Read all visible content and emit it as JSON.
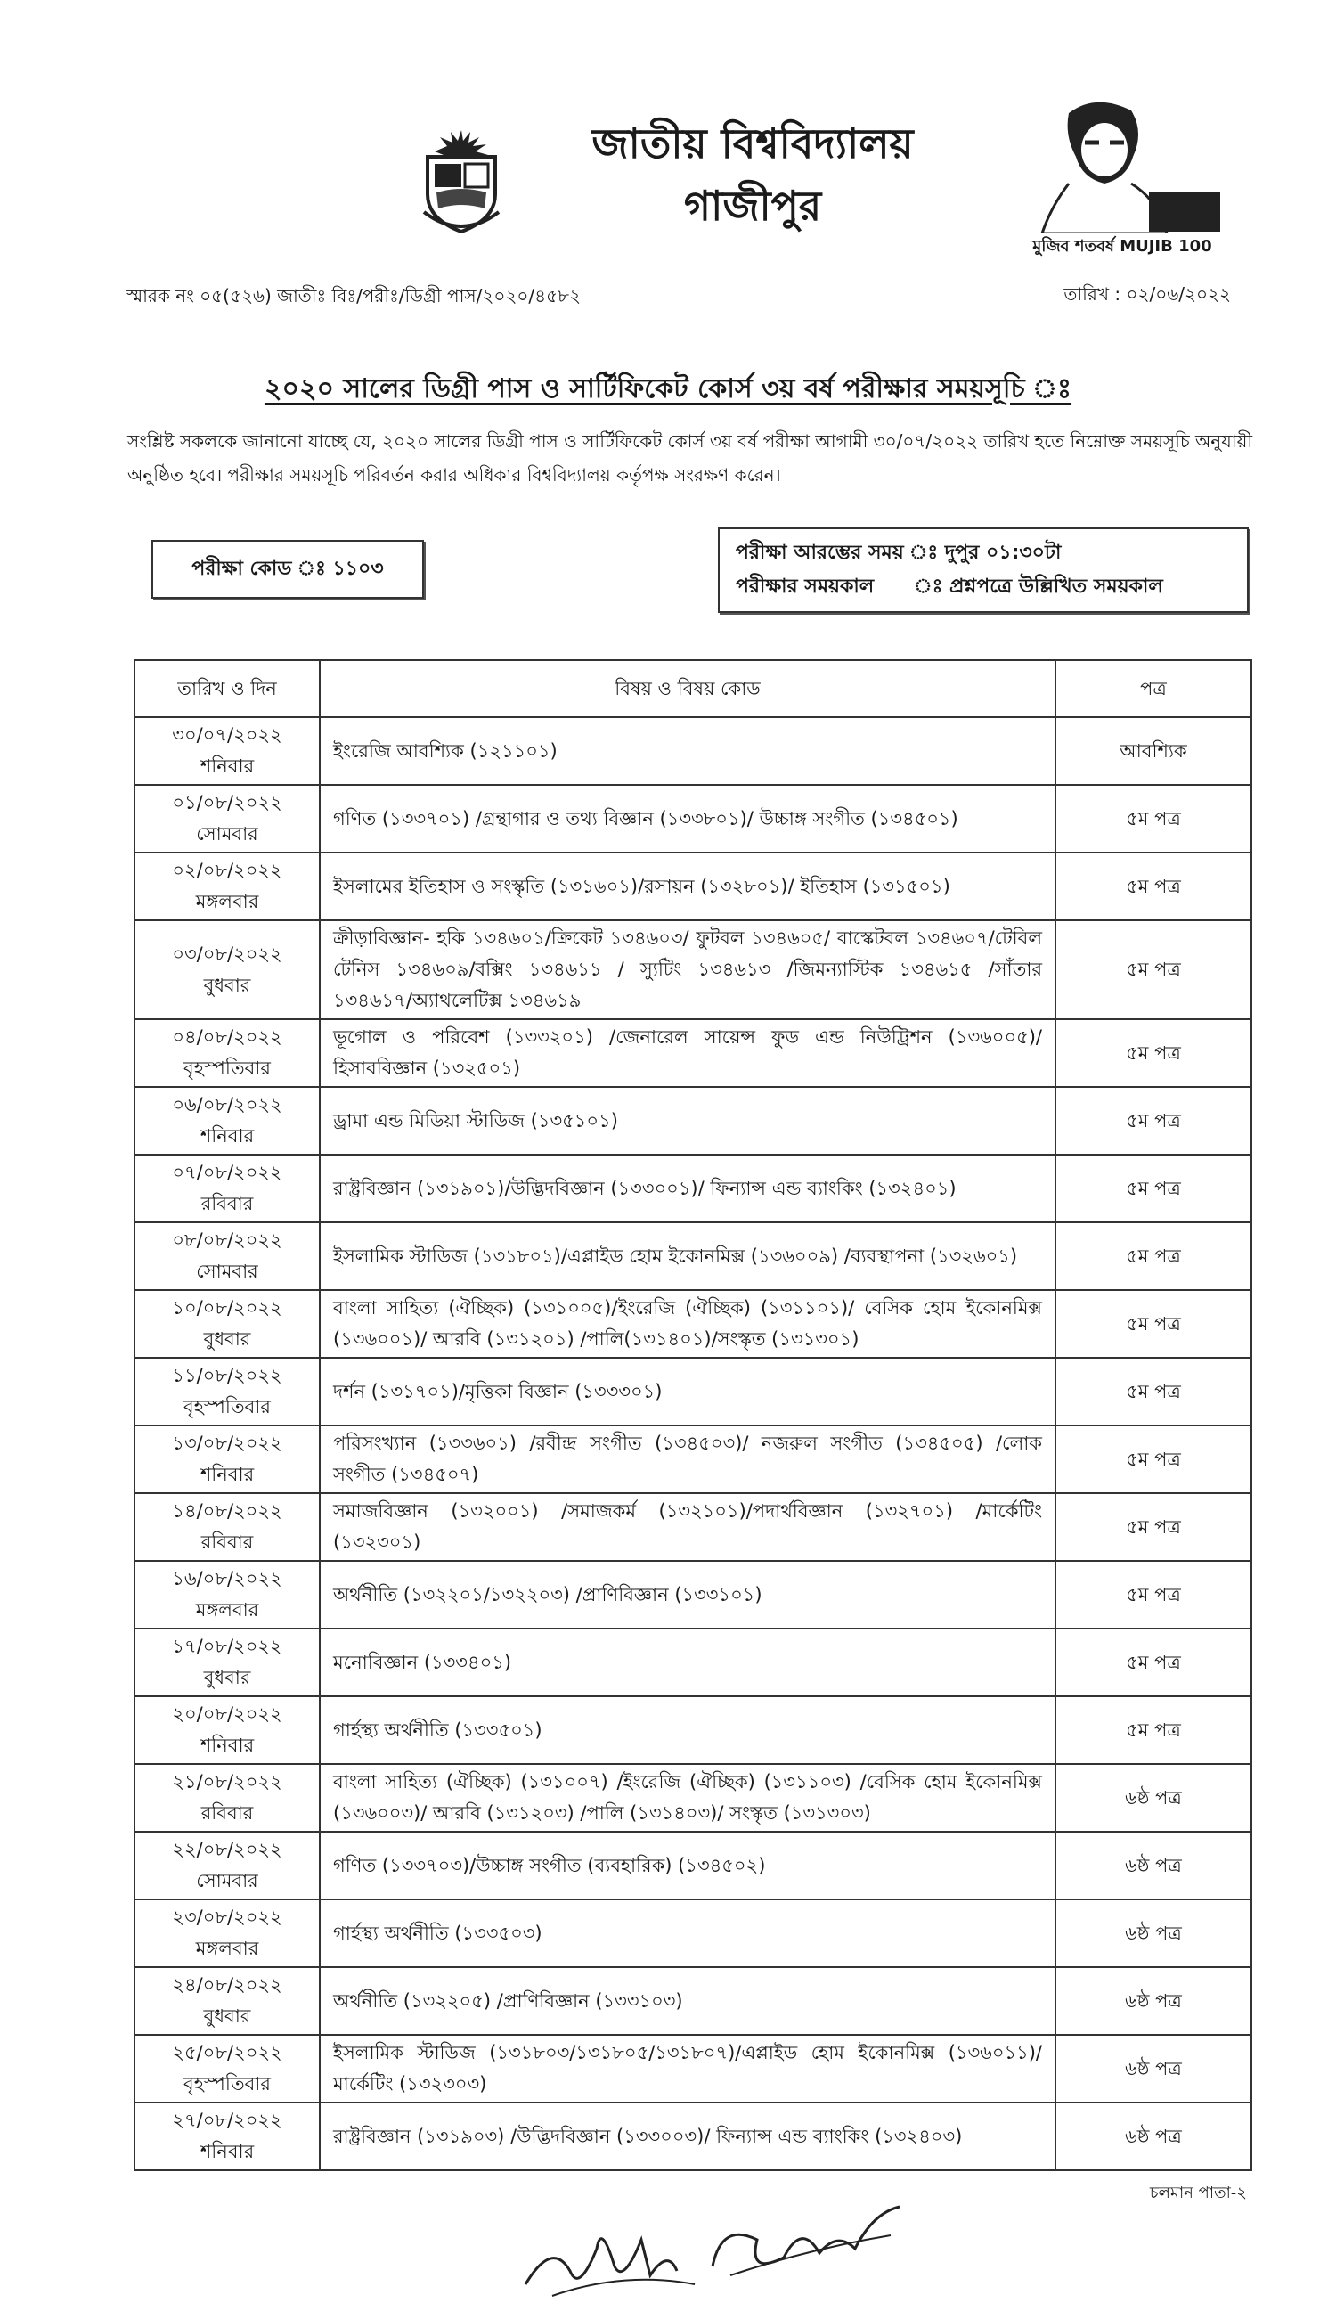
{
  "header": {
    "university_name": "জাতীয় বিশ্ববিদ্যালয়",
    "location": "গাজীপুর",
    "logo_text": "জাতীয় বিশ্ববিদ্যালয়",
    "mujib_logo_text": "মুজিব শতবর্ষ MUJIB 100"
  },
  "memo": "স্মারক নং ০৫(৫২৬) জাতীঃ বিঃ/পরীঃ/ডিগ্রী পাস/২০২০/৪৫৮২",
  "date": "তারিখ : ০২/০৬/২০২২",
  "title": "২০২০ সালের ডিগ্রী পাস ও সার্টিফিকেট কোর্স ৩য় বর্ষ পরীক্ষার সময়সূচি ঃ",
  "intro": "সংশ্লিষ্ট সকলকে জানানো যাচ্ছে যে, ২০২০ সালের ডিগ্রী পাস ও সার্টিফিকেট কোর্স ৩য় বর্ষ পরীক্ষা আগামী ৩০/০৭/২০২২ তারিখ হতে নিম্নোক্ত সময়সূচি অনুযায়ী অনুষ্ঠিত হবে। পরীক্ষার সময়সূচি পরিবর্তন করার অধিকার বিশ্ববিদ্যালয় কর্তৃপক্ষ সংরক্ষণ করেন।",
  "exam_code": "পরীক্ষা কোড ঃ ১১০৩",
  "exam_info": {
    "start_label": "পরীক্ষা আরম্ভের সময়",
    "start_value": "ঃ দুপুর ০১:৩০টা",
    "duration_label": "পরীক্ষার সময়কাল",
    "duration_value": "ঃ প্রশ্নপত্রে উল্লিখিত সময়কাল"
  },
  "table": {
    "headers": [
      "তারিখ ও দিন",
      "বিষয় ও বিষয় কোড",
      "পত্র"
    ],
    "rows": [
      {
        "date": "৩০/০৭/২০২২",
        "day": "শনিবার",
        "subject": "ইংরেজি আবশ্যিক (১২১১০১)",
        "paper": "আবশ্যিক"
      },
      {
        "date": "০১/০৮/২০২২",
        "day": "সোমবার",
        "subject": "গণিত (১৩৩৭০১) /গ্রন্থাগার ও তথ্য বিজ্ঞান (১৩৩৮০১)/ উচ্চাঙ্গ সংগীত (১৩৪৫০১)",
        "paper": "৫ম পত্র"
      },
      {
        "date": "০২/০৮/২০২২",
        "day": "মঙ্গলবার",
        "subject": "ইসলামের ইতিহাস ও সংস্কৃতি (১৩১৬০১)/রসায়ন (১৩২৮০১)/ ইতিহাস (১৩১৫০১)",
        "paper": "৫ম পত্র"
      },
      {
        "date": "০৩/০৮/২০২২",
        "day": "বুধবার",
        "subject": "ক্রীড়াবিজ্ঞান- হকি ১৩৪৬০১/ক্রিকেট ১৩৪৬০৩/ ফুটবল ১৩৪৬০৫/ বাস্কেটবল ১৩৪৬০৭/টেবিল টেনিস ১৩৪৬০৯/বক্সিং ১৩৪৬১১ / স্যুটিং ১৩৪৬১৩ /জিমন্যাস্টিক ১৩৪৬১৫ /সাঁতার ১৩৪৬১৭/অ্যাথলেটিক্স ১৩৪৬১৯",
        "paper": "৫ম পত্র"
      },
      {
        "date": "০৪/০৮/২০২২",
        "day": "বৃহস্পতিবার",
        "subject": "ভূগোল ও পরিবেশ (১৩৩২০১) /জেনারেল সায়েন্স ফুড এন্ড নিউট্রিশন (১৩৬০০৫)/ হিসাববিজ্ঞান (১৩২৫০১)",
        "paper": "৫ম পত্র"
      },
      {
        "date": "০৬/০৮/২০২২",
        "day": "শনিবার",
        "subject": "ড্রামা এন্ড মিডিয়া স্টাডিজ (১৩৫১০১)",
        "paper": "৫ম পত্র"
      },
      {
        "date": "০৭/০৮/২০২২",
        "day": "রবিবার",
        "subject": "রাষ্ট্রবিজ্ঞান (১৩১৯০১)/উদ্ভিদবিজ্ঞান (১৩৩০০১)/ ফিন্যান্স এন্ড ব্যাংকিং (১৩২৪০১)",
        "paper": "৫ম পত্র"
      },
      {
        "date": "০৮/০৮/২০২২",
        "day": "সোমবার",
        "subject": "ইসলামিক স্টাডিজ (১৩১৮০১)/এপ্লাইড হোম ইকোনমিক্স (১৩৬০০৯) /ব্যবস্থাপনা (১৩২৬০১)",
        "paper": "৫ম পত্র"
      },
      {
        "date": "১০/০৮/২০২২",
        "day": "বুধবার",
        "subject": "বাংলা সাহিত্য (ঐচ্ছিক) (১৩১০০৫)/ইংরেজি (ঐচ্ছিক) (১৩১১০১)/ বেসিক হোম ইকোনমিক্স (১৩৬০০১)/ আরবি (১৩১২০১) /পালি(১৩১৪০১)/সংস্কৃত (১৩১৩০১)",
        "paper": "৫ম পত্র"
      },
      {
        "date": "১১/০৮/২০২২",
        "day": "বৃহস্পতিবার",
        "subject": "দর্শন (১৩১৭০১)/মৃত্তিকা বিজ্ঞান (১৩৩৩০১)",
        "paper": "৫ম পত্র"
      },
      {
        "date": "১৩/০৮/২০২২",
        "day": "শনিবার",
        "subject": "পরিসংখ্যান (১৩৩৬০১) /রবীন্দ্র সংগীত (১৩৪৫০৩)/ নজরুল সংগীত (১৩৪৫০৫) /লোক সংগীত (১৩৪৫০৭)",
        "paper": "৫ম পত্র"
      },
      {
        "date": "১৪/০৮/২০২২",
        "day": "রবিবার",
        "subject": "সমাজবিজ্ঞান (১৩২০০১) /সমাজকর্ম (১৩২১০১)/পদার্থবিজ্ঞান (১৩২৭০১) /মার্কেটিং (১৩২৩০১)",
        "paper": "৫ম পত্র"
      },
      {
        "date": "১৬/০৮/২০২২",
        "day": "মঙ্গলবার",
        "subject": "অর্থনীতি (১৩২২০১/১৩২২০৩) /প্রাণিবিজ্ঞান (১৩৩১০১)",
        "paper": "৫ম পত্র"
      },
      {
        "date": "১৭/০৮/২০২২",
        "day": "বুধবার",
        "subject": "মনোবিজ্ঞান (১৩৩৪০১)",
        "paper": "৫ম পত্র"
      },
      {
        "date": "২০/০৮/২০২২",
        "day": "শনিবার",
        "subject": "গার্হস্থ্য অর্থনীতি (১৩৩৫০১)",
        "paper": "৫ম পত্র"
      },
      {
        "date": "২১/০৮/২০২২",
        "day": "রবিবার",
        "subject": "বাংলা সাহিত্য (ঐচ্ছিক) (১৩১০০৭) /ইংরেজি (ঐচ্ছিক) (১৩১১০৩) /বেসিক হোম ইকোনমিক্স (১৩৬০০৩)/ আরবি (১৩১২০৩) /পালি (১৩১৪০৩)/ সংস্কৃত (১৩১৩০৩)",
        "paper": "৬ষ্ঠ পত্র"
      },
      {
        "date": "২২/০৮/২০২২",
        "day": "সোমবার",
        "subject": "গণিত (১৩৩৭০৩)/উচ্চাঙ্গ সংগীত (ব্যবহারিক) (১৩৪৫০২)",
        "paper": "৬ষ্ঠ পত্র"
      },
      {
        "date": "২৩/০৮/২০২২",
        "day": "মঙ্গলবার",
        "subject": "গার্হস্থ্য অর্থনীতি (১৩৩৫০৩)",
        "paper": "৬ষ্ঠ পত্র"
      },
      {
        "date": "২৪/০৮/২০২২",
        "day": "বুধবার",
        "subject": "অর্থনীতি (১৩২২০৫) /প্রাণিবিজ্ঞান (১৩৩১০৩)",
        "paper": "৬ষ্ঠ পত্র"
      },
      {
        "date": "২৫/০৮/২০২২",
        "day": "বৃহস্পতিবার",
        "subject": "ইসলামিক স্টাডিজ (১৩১৮০৩/১৩১৮০৫/১৩১৮০৭)/এপ্লাইড হোম ইকোনমিক্স (১৩৬০১১)/মার্কেটিং (১৩২৩০৩)",
        "paper": "৬ষ্ঠ পত্র"
      },
      {
        "date": "২৭/০৮/২০২২",
        "day": "শনিবার",
        "subject": "রাষ্ট্রবিজ্ঞান (১৩১৯০৩) /উদ্ভিদবিজ্ঞান (১৩৩০০৩)/ ফিন্যান্স এন্ড ব্যাংকিং (১৩২৪০৩)",
        "paper": "৬ষ্ঠ পত্র"
      }
    ]
  },
  "footer": {
    "continued": "চলমান পাতা-২"
  }
}
